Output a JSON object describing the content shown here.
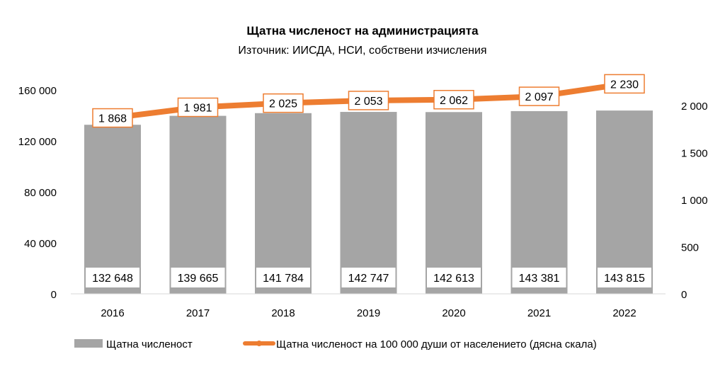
{
  "chart_data": {
    "type": "bar+line",
    "title": "Щатна численост на администрацията",
    "subtitle": "Източник: ИИСДА, НСИ, собствени изчисления",
    "categories": [
      "2016",
      "2017",
      "2018",
      "2019",
      "2020",
      "2021",
      "2022"
    ],
    "series": [
      {
        "name": "Щатна численост",
        "type": "bar",
        "axis": "left",
        "color": "#A5A5A5",
        "values": [
          132648,
          139665,
          141784,
          142747,
          142613,
          143381,
          143815
        ],
        "labels": [
          "132 648",
          "139 665",
          "141 784",
          "142 747",
          "142 613",
          "143 381",
          "143 815"
        ]
      },
      {
        "name": "Щатна численост на 100 000 души от населението (дясна скала)",
        "type": "line",
        "axis": "right",
        "color": "#ED7D31",
        "values": [
          1868,
          1981,
          2025,
          2053,
          2062,
          2097,
          2230
        ],
        "labels": [
          "1 868",
          "1 981",
          "2 025",
          "2 053",
          "2 062",
          "2 097",
          "2 230"
        ]
      }
    ],
    "left_axis": {
      "ylim": [
        0,
        160000
      ],
      "ticks": [
        0,
        40000,
        80000,
        120000,
        160000
      ],
      "tick_labels": [
        "0",
        "40 000",
        "80 000",
        "120 000",
        "160 000"
      ]
    },
    "right_axis": {
      "ylim": [
        0,
        2165
      ],
      "ticks": [
        0,
        500,
        1000,
        1500,
        2000
      ],
      "tick_labels": [
        "0",
        "500",
        "1 000",
        "1 500",
        "2 000"
      ]
    },
    "grid": false,
    "legend": "bottom"
  }
}
